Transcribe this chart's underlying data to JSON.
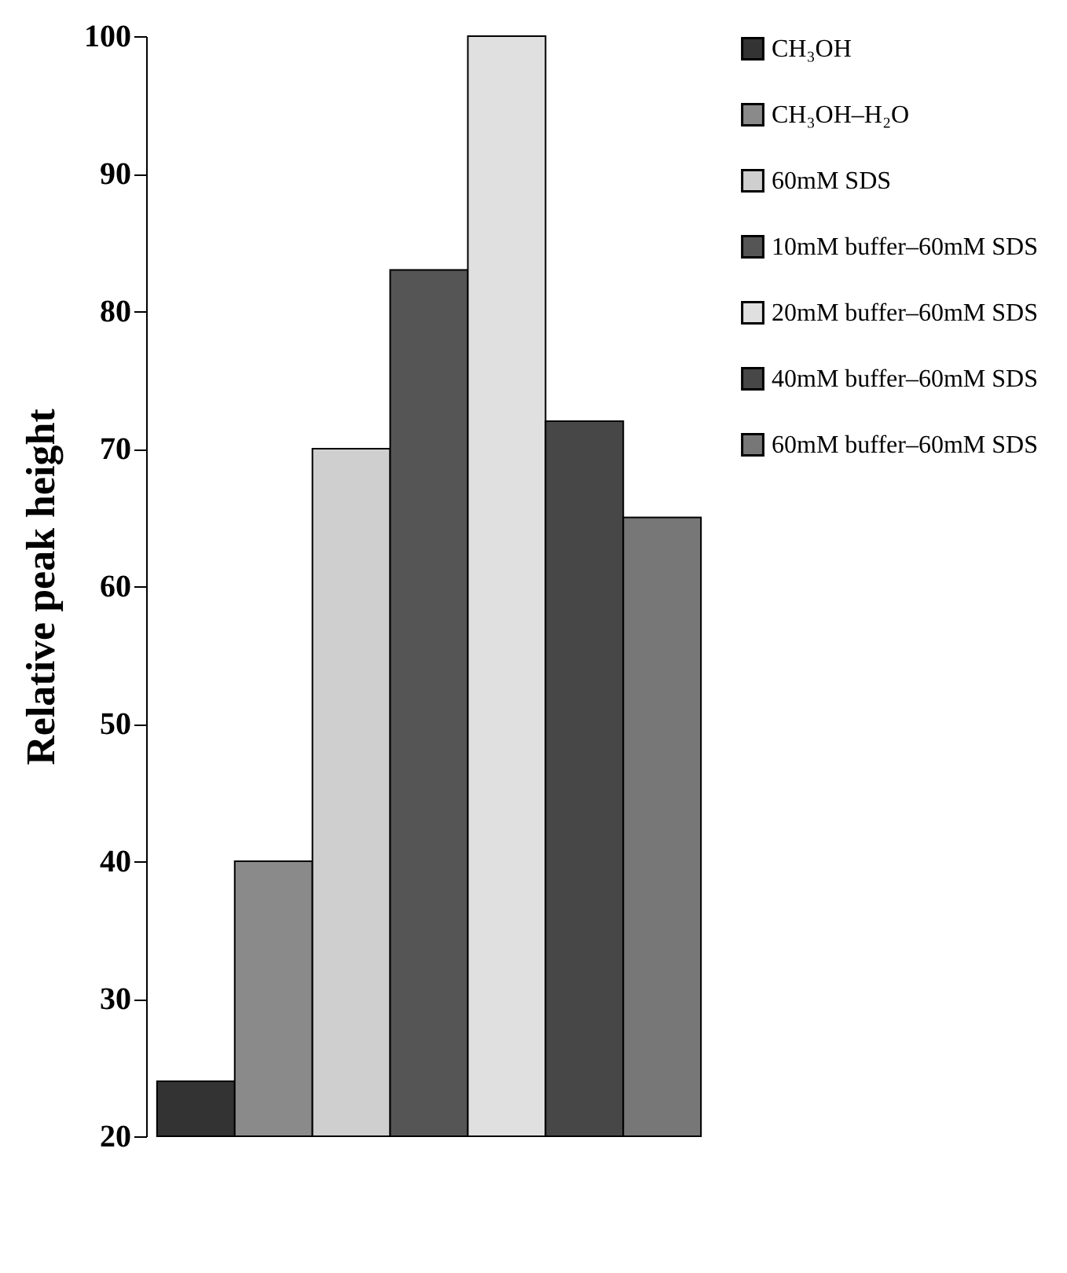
{
  "chart_data": {
    "type": "bar",
    "ylabel": "Relative peak height",
    "categories": [
      null
    ],
    "series": [
      {
        "name": "CH₃OH",
        "color": "#333333",
        "values": [
          24
        ]
      },
      {
        "name": "CH₃OH–H₂O",
        "color": "#8a8a8a",
        "values": [
          40
        ]
      },
      {
        "name": "60mM SDS",
        "color": "#cfcfcf",
        "values": [
          70
        ]
      },
      {
        "name": "10mM buffer–60mM SDS",
        "color": "#555555",
        "values": [
          83
        ]
      },
      {
        "name": "20mM buffer–60mM SDS",
        "color": "#e0e0e0",
        "values": [
          100
        ]
      },
      {
        "name": "40mM buffer–60mM SDS",
        "color": "#474747",
        "values": [
          72
        ]
      },
      {
        "name": "60mM buffer–60mM SDS",
        "color": "#777777",
        "values": [
          65
        ]
      }
    ],
    "ylim": [
      20,
      100
    ],
    "yticks": [
      20,
      30,
      40,
      50,
      60,
      70,
      80,
      90,
      100
    ],
    "legend": "right",
    "tick_labels": "y"
  }
}
